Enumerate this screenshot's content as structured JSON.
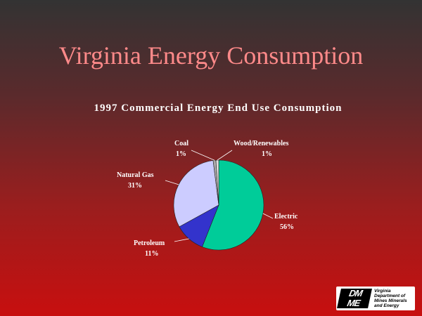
{
  "slide": {
    "title": "Virginia Energy Consumption",
    "logo": {
      "mark_line1": "DM",
      "mark_line2": "ME",
      "text_lines": [
        "Virginia",
        "Department of",
        "Mines Minerals",
        "and Energy"
      ]
    }
  },
  "colors": {
    "background_top": "#333333",
    "background_bottom": "#c80f0f",
    "title": "#ff8a8a"
  },
  "chart_data": {
    "type": "pie",
    "title": "1997 Commercial Energy End Use Consumption",
    "start_angle_deg": 0,
    "direction": "clockwise",
    "slices": [
      {
        "label": "Electric",
        "value": 56,
        "pct_label": "56%",
        "color": "#00cc99"
      },
      {
        "label": "Petroleum",
        "value": 11,
        "pct_label": "11%",
        "color": "#3333cc"
      },
      {
        "label": "Natural Gas",
        "value": 31,
        "pct_label": "31%",
        "color": "#ccccff"
      },
      {
        "label": "Coal",
        "value": 1,
        "pct_label": "1%",
        "color": "#aaaaaa"
      },
      {
        "label": "Wood/Renewables",
        "value": 1,
        "pct_label": "1%",
        "color": "#dddddd"
      }
    ]
  }
}
